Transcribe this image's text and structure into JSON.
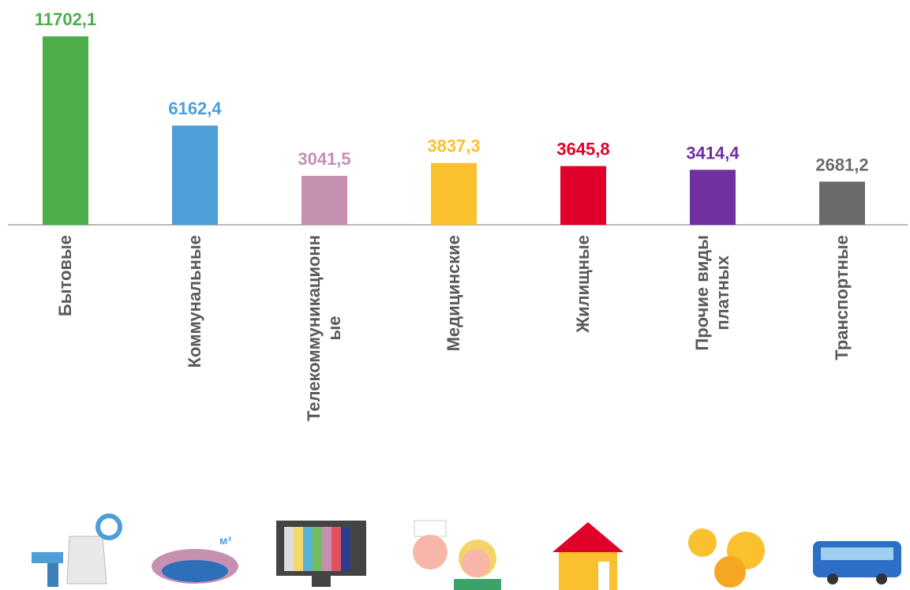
{
  "chart_data": {
    "type": "bar",
    "categories": [
      "Бытовые",
      "Коммунальные",
      "Телекоммуникационн\nые",
      "Медицинские",
      "Жилищные",
      "Прочие виды\nплатных",
      "Транспортные"
    ],
    "values": [
      11702.1,
      6162.4,
      3041.5,
      3837.3,
      3645.8,
      3414.4,
      2681.2
    ],
    "value_labels": [
      "11702,1",
      "6162,4",
      "3041,5",
      "3837,3",
      "3645,8",
      "3414,4",
      "2681,2"
    ],
    "colors": [
      "#4daf4a",
      "#4e9ed8",
      "#c690b1",
      "#fbc02d",
      "#e0002a",
      "#7030a0",
      "#6b6b6b"
    ],
    "ylim": [
      0,
      12000
    ]
  }
}
